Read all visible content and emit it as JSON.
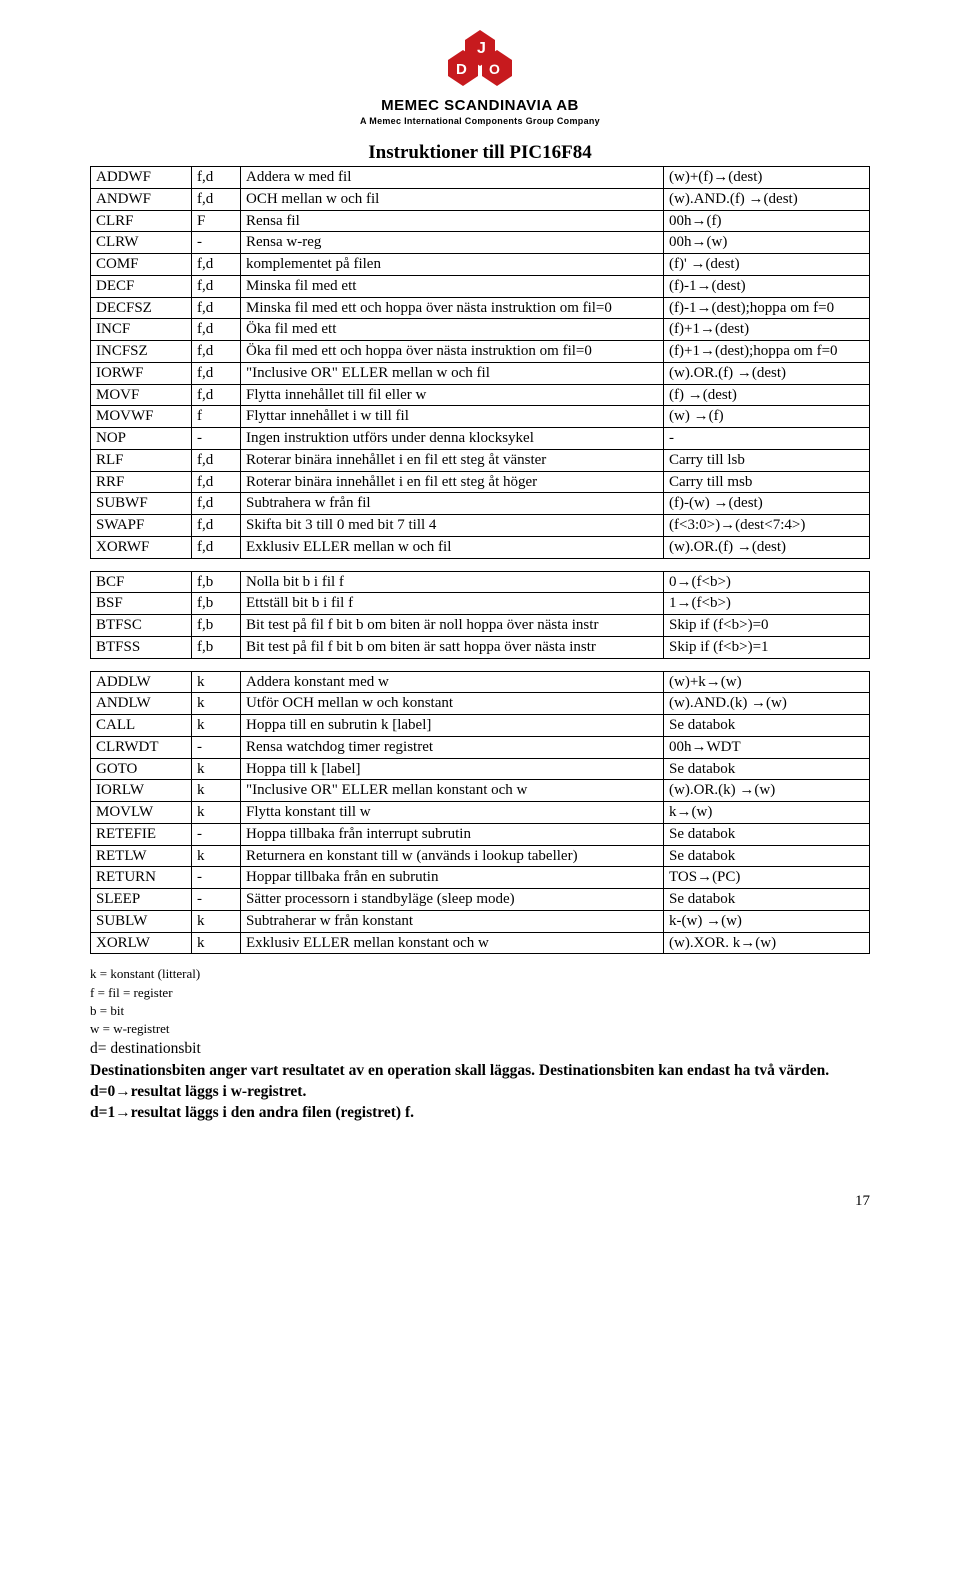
{
  "header": {
    "company": "MEMEC SCANDINAVIA AB",
    "sub": "A Memec International Components Group Company",
    "logo_color": "#c71a1e"
  },
  "title": "Instruktioner till PIC16F84",
  "table1": {
    "rows": [
      [
        "ADDWF",
        "f,d",
        "Addera w med fil",
        "(w)+(f)→(dest)"
      ],
      [
        "ANDWF",
        "f,d",
        "OCH mellan w och fil",
        "(w).AND.(f) →(dest)"
      ],
      [
        "CLRF",
        "F",
        "Rensa fil",
        "00h→(f)"
      ],
      [
        "CLRW",
        "-",
        "Rensa w-reg",
        "00h→(w)"
      ],
      [
        "COMF",
        "f,d",
        "komplementet på filen",
        "(f)' →(dest)"
      ],
      [
        "DECF",
        "f,d",
        "Minska fil med ett",
        "(f)-1→(dest)"
      ],
      [
        "DECFSZ",
        "f,d",
        "Minska fil med ett och hoppa över nästa instruktion om fil=0",
        "(f)-1→(dest);hoppa om f=0"
      ],
      [
        "INCF",
        "f,d",
        "Öka fil med ett",
        "(f)+1→(dest)"
      ],
      [
        "INCFSZ",
        "f,d",
        "Öka fil med ett och hoppa över nästa instruktion om fil=0",
        "(f)+1→(dest);hoppa om f=0"
      ],
      [
        "IORWF",
        "f,d",
        "\"Inclusive OR\" ELLER mellan w och fil",
        "(w).OR.(f) →(dest)"
      ],
      [
        "MOVF",
        "f,d",
        "Flytta innehållet till fil eller w",
        "(f) →(dest)"
      ],
      [
        "MOVWF",
        "f",
        "Flyttar innehållet i w till fil",
        "(w) →(f)"
      ],
      [
        "NOP",
        "-",
        "Ingen instruktion utförs under denna klocksykel",
        "-"
      ],
      [
        "RLF",
        "f,d",
        "Roterar binära innehållet i en fil ett steg åt vänster",
        "Carry till lsb"
      ],
      [
        "RRF",
        "f,d",
        "Roterar binära innehållet i en fil ett steg åt höger",
        "Carry till msb"
      ],
      [
        "SUBWF",
        "f,d",
        "Subtrahera w från fil",
        "(f)-(w) →(dest)"
      ],
      [
        "SWAPF",
        "f,d",
        "Skifta bit 3 till 0 med bit 7 till 4",
        "(f<3:0>)→(dest<7:4>)"
      ],
      [
        "XORWF",
        "f,d",
        "Exklusiv ELLER mellan w och fil",
        "(w).OR.(f) →(dest)"
      ]
    ]
  },
  "table2": {
    "rows": [
      [
        "BCF",
        "f,b",
        "Nolla bit b i fil f",
        "0→(f<b>)"
      ],
      [
        "BSF",
        "f,b",
        "Ettställ bit b i fil f",
        "1→(f<b>)"
      ],
      [
        "BTFSC",
        "f,b",
        "Bit test på fil f  bit b om biten är noll hoppa över nästa instr",
        "Skip if (f<b>)=0"
      ],
      [
        "BTFSS",
        "f,b",
        "Bit test på fil f  bit b om biten är satt hoppa över nästa instr",
        "Skip if (f<b>)=1"
      ]
    ]
  },
  "table3": {
    "rows": [
      [
        "ADDLW",
        "k",
        "Addera konstant med w",
        "(w)+k→(w)"
      ],
      [
        "ANDLW",
        "k",
        "Utför OCH mellan w och konstant",
        "(w).AND.(k) →(w)"
      ],
      [
        "CALL",
        "k",
        "Hoppa till en subrutin k [label]",
        "Se databok"
      ],
      [
        "CLRWDT",
        "-",
        "Rensa watchdog timer registret",
        "00h→WDT"
      ],
      [
        "GOTO",
        "k",
        "Hoppa till k [label]",
        "Se databok"
      ],
      [
        "IORLW",
        "k",
        "\"Inclusive OR\" ELLER mellan konstant och w",
        "(w).OR.(k) →(w)"
      ],
      [
        "MOVLW",
        "k",
        "Flytta konstant till w",
        "k→(w)"
      ],
      [
        "RETEFIE",
        "-",
        "Hoppa tillbaka från interrupt subrutin",
        "Se databok"
      ],
      [
        "RETLW",
        "k",
        "Returnera en konstant till w (används i lookup tabeller)",
        "Se databok"
      ],
      [
        "RETURN",
        "-",
        "Hoppar tillbaka från en subrutin",
        "TOS→(PC)"
      ],
      [
        "SLEEP",
        "-",
        "Sätter processorn i standbyläge (sleep mode)",
        "Se databok"
      ],
      [
        "SUBLW",
        "k",
        "Subtraherar w från konstant",
        "k-(w) →(w)"
      ],
      [
        "XORLW",
        "k",
        "Exklusiv ELLER mellan konstant och w",
        "(w).XOR. k→(w)"
      ]
    ]
  },
  "notes": {
    "l1": "k = konstant (litteral)",
    "l2": "f = fil = register",
    "l3": "b = bit",
    "l4": "w = w-registret",
    "l5": "d= destinationsbit"
  },
  "dest": {
    "l1": "Destinationsbiten anger vart resultatet av en operation skall läggas. Destinationsbiten kan endast ha två värden.",
    "l2": "d=0→resultat läggs i w-registret.",
    "l3": "d=1→resultat läggs i den andra filen (registret) f."
  },
  "footer": {
    "page": "17"
  }
}
